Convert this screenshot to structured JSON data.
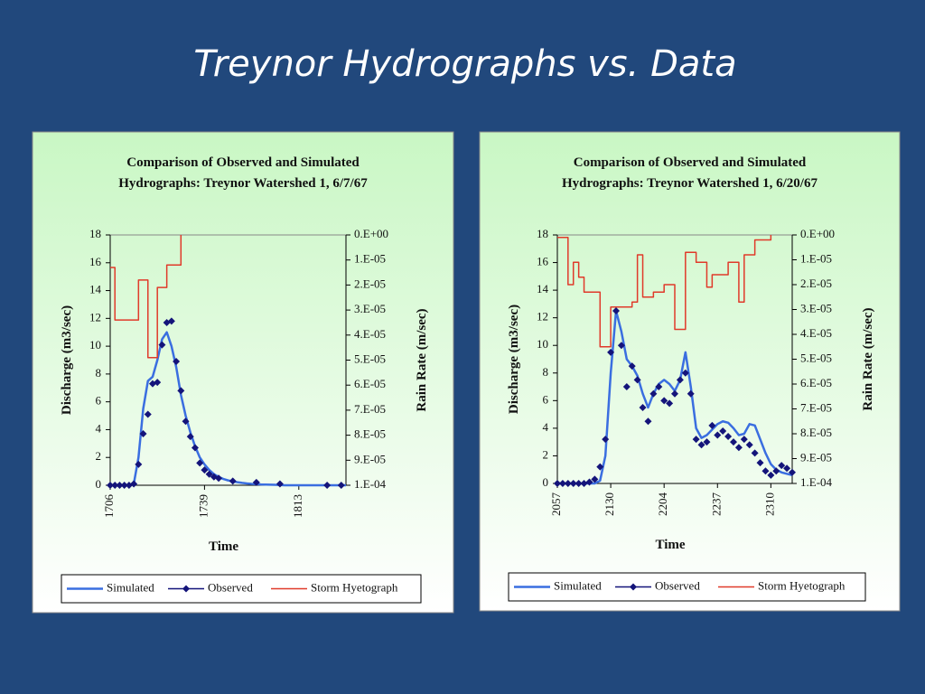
{
  "slide_title": "Treynor Hydrographs vs. Data",
  "chart_data": [
    {
      "type": "line",
      "title": [
        "Comparison of Observed and Simulated",
        "Hydrographs: Treynor Watershed 1, 6/7/67"
      ],
      "xlabel": "Time",
      "ylabel": "Discharge (m3/sec)",
      "y2label": "Rain Rate (m/sec)",
      "categories": [
        "1706",
        null,
        null,
        null,
        null,
        null,
        null,
        null,
        null,
        null,
        null,
        null,
        null,
        null,
        null,
        null,
        null,
        null,
        null,
        null,
        "1739",
        null,
        null,
        null,
        null,
        null,
        null,
        null,
        null,
        null,
        null,
        null,
        null,
        null,
        null,
        null,
        null,
        null,
        null,
        null,
        "1813",
        null,
        null,
        null,
        null,
        null,
        null,
        null,
        null,
        null,
        null
      ],
      "ylim": [
        0,
        18
      ],
      "yticks": [
        0,
        2,
        4,
        6,
        8,
        10,
        12,
        14,
        16,
        18
      ],
      "y2lim": [
        0,
        0.0001
      ],
      "y2_inverted": true,
      "y2ticks": [
        {
          "value": 0,
          "label": "0.E+00"
        },
        {
          "value": 1e-05,
          "label": "1.E-05"
        },
        {
          "value": 2e-05,
          "label": "2.E-05"
        },
        {
          "value": 3e-05,
          "label": "3.E-05"
        },
        {
          "value": 4e-05,
          "label": "4.E-05"
        },
        {
          "value": 5e-05,
          "label": "5.E-05"
        },
        {
          "value": 6e-05,
          "label": "6.E-05"
        },
        {
          "value": 7e-05,
          "label": "7.E-05"
        },
        {
          "value": 8e-05,
          "label": "8.E-05"
        },
        {
          "value": 9e-05,
          "label": "9.E-05"
        },
        {
          "value": 0.0001,
          "label": "1.E-04"
        }
      ],
      "legend": "bottom",
      "series": [
        {
          "name": "Simulated",
          "color": "#3a6ee0",
          "style": "line",
          "values": [
            0,
            0,
            0,
            0,
            0,
            0.1,
            2,
            5.5,
            7.5,
            7.8,
            9,
            10.5,
            11,
            10,
            8.5,
            6.5,
            5,
            3.8,
            2.8,
            2,
            1.5,
            1.1,
            0.8,
            0.6,
            0.45,
            0.35,
            0.28,
            0.22,
            0.17,
            0.13,
            0.1,
            0.08,
            0.06,
            0.05,
            0.04,
            0.03,
            0.02,
            0,
            0,
            0,
            0,
            0,
            0,
            0,
            0,
            0,
            0,
            0,
            0,
            0,
            0
          ]
        },
        {
          "name": "Observed",
          "color": "#14147a",
          "style": "markers",
          "values": [
            0,
            0,
            0,
            0,
            0,
            0.1,
            1.5,
            3.7,
            5.1,
            7.3,
            7.4,
            10.1,
            11.7,
            11.8,
            8.9,
            6.8,
            4.6,
            3.5,
            2.7,
            1.6,
            1.1,
            0.8,
            0.6,
            0.5,
            null,
            null,
            0.3,
            null,
            null,
            null,
            null,
            0.2,
            null,
            null,
            null,
            null,
            0.1,
            null,
            null,
            null,
            null,
            null,
            null,
            null,
            null,
            null,
            0,
            null,
            null,
            0,
            null
          ]
        },
        {
          "name": "Storm Hyetograph",
          "color": "#e03a2a",
          "style": "step",
          "axis": "y2",
          "values": [
            1.3e-05,
            3.4e-05,
            3.4e-05,
            3.4e-05,
            3.4e-05,
            3.4e-05,
            1.8e-05,
            1.8e-05,
            4.9e-05,
            4.9e-05,
            2.1e-05,
            2.1e-05,
            1.2e-05,
            1.2e-05,
            1.2e-05,
            0,
            null,
            null,
            null,
            null,
            null,
            null,
            null,
            null,
            null,
            null,
            null,
            null,
            null,
            null,
            null,
            null,
            null,
            null,
            null,
            null,
            null,
            null,
            null,
            null,
            null,
            null,
            null,
            null,
            null,
            null,
            null,
            null,
            null,
            null,
            null
          ]
        }
      ]
    },
    {
      "type": "line",
      "title": [
        "Comparison of Observed and Simulated",
        "Hydrographs: Treynor Watershed 1, 6/20/67"
      ],
      "xlabel": "Time",
      "ylabel": "Discharge (m3/sec)",
      "y2label": "Rain Rate (m/sec)",
      "categories": [
        "2057",
        null,
        null,
        null,
        null,
        null,
        null,
        null,
        null,
        null,
        "2130",
        null,
        null,
        null,
        null,
        null,
        null,
        null,
        null,
        null,
        "2204",
        null,
        null,
        null,
        null,
        null,
        null,
        null,
        null,
        null,
        "2237",
        null,
        null,
        null,
        null,
        null,
        null,
        null,
        null,
        null,
        "2310",
        null,
        null,
        null,
        null
      ],
      "ylim": [
        0,
        18
      ],
      "yticks": [
        0,
        2,
        4,
        6,
        8,
        10,
        12,
        14,
        16,
        18
      ],
      "y2lim": [
        0,
        0.0001
      ],
      "y2_inverted": true,
      "y2ticks": [
        {
          "value": 0,
          "label": "0.E+00"
        },
        {
          "value": 1e-05,
          "label": "1.E-05"
        },
        {
          "value": 2e-05,
          "label": "2.E-05"
        },
        {
          "value": 3e-05,
          "label": "3.E-05"
        },
        {
          "value": 4e-05,
          "label": "4.E-05"
        },
        {
          "value": 5e-05,
          "label": "5.E-05"
        },
        {
          "value": 6e-05,
          "label": "6.E-05"
        },
        {
          "value": 7e-05,
          "label": "7.E-05"
        },
        {
          "value": 8e-05,
          "label": "8.E-05"
        },
        {
          "value": 9e-05,
          "label": "9.E-05"
        },
        {
          "value": 0.0001,
          "label": "1.E-04"
        }
      ],
      "legend": "bottom",
      "series": [
        {
          "name": "Simulated",
          "color": "#3a6ee0",
          "style": "line",
          "values": [
            0,
            0,
            0,
            0,
            0,
            0,
            0,
            0,
            0.2,
            2,
            8,
            12.5,
            11,
            9,
            8.5,
            7.8,
            6.5,
            5.5,
            6.5,
            7.2,
            7.5,
            7.2,
            6.7,
            7.5,
            9.5,
            7,
            4,
            3.3,
            3.5,
            3.9,
            4.3,
            4.5,
            4.4,
            4,
            3.5,
            3.6,
            4.3,
            4.2,
            3.2,
            2.2,
            1.4,
            1,
            0.8,
            0.7,
            0.6
          ]
        },
        {
          "name": "Observed",
          "color": "#14147a",
          "style": "markers",
          "values": [
            0,
            0,
            0,
            0,
            0,
            0,
            0.1,
            0.3,
            1.2,
            3.2,
            9.5,
            12.5,
            10,
            7,
            8.5,
            7.5,
            5.5,
            4.5,
            6.5,
            7,
            6,
            5.8,
            6.5,
            7.5,
            8,
            6.5,
            3.2,
            2.8,
            3,
            4.2,
            3.5,
            3.8,
            3.4,
            3,
            2.6,
            3.2,
            2.8,
            2.2,
            1.5,
            0.9,
            0.6,
            0.9,
            1.3,
            1.1,
            0.8
          ]
        },
        {
          "name": "Storm Hyetograph",
          "color": "#e03a2a",
          "style": "step",
          "axis": "y2",
          "values": [
            1e-06,
            1e-06,
            2e-05,
            1.1e-05,
            1.7e-05,
            2.3e-05,
            2.3e-05,
            2.3e-05,
            4.5e-05,
            4.5e-05,
            2.9e-05,
            2.9e-05,
            2.9e-05,
            2.9e-05,
            2.7e-05,
            8e-06,
            2.5e-05,
            2.5e-05,
            2.3e-05,
            2.3e-05,
            2e-05,
            2e-05,
            3.8e-05,
            3.8e-05,
            7e-06,
            7e-06,
            1.1e-05,
            1.1e-05,
            2.1e-05,
            1.6e-05,
            1.6e-05,
            1.6e-05,
            1.1e-05,
            1.1e-05,
            2.7e-05,
            8e-06,
            8e-06,
            2e-06,
            2e-06,
            2e-06,
            0,
            null,
            null,
            null,
            null
          ]
        }
      ]
    }
  ]
}
